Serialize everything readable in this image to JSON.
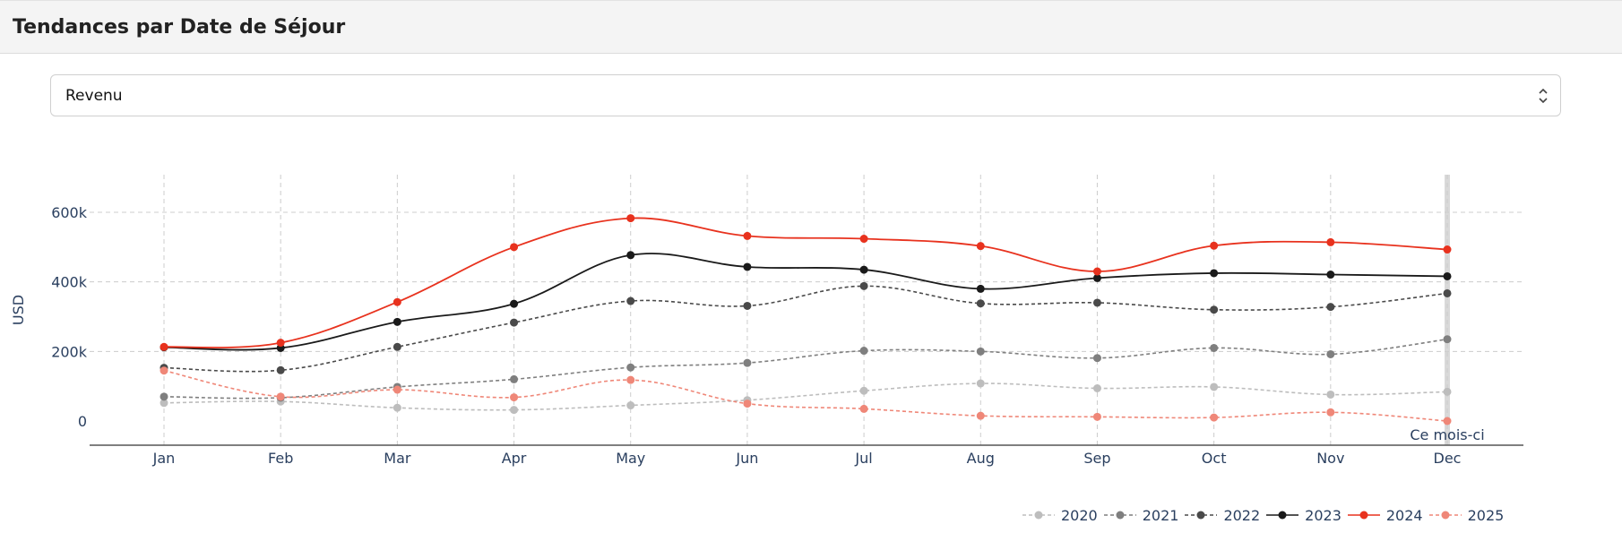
{
  "page": {
    "title": "Tendances par Date de Séjour"
  },
  "selector": {
    "value": "Revenu",
    "icon": "chevron-up-down-icon"
  },
  "chart_data": {
    "type": "line",
    "ylabel": "USD",
    "xlabel": "",
    "categories": [
      "Jan",
      "Feb",
      "Mar",
      "Apr",
      "May",
      "Jun",
      "Jul",
      "Aug",
      "Sep",
      "Oct",
      "Nov",
      "Dec"
    ],
    "ylim": [
      -60000,
      700000
    ],
    "yticks": [
      0,
      200000,
      400000,
      600000
    ],
    "ytick_labels": [
      "0",
      "200k",
      "400k",
      "600k"
    ],
    "grid": true,
    "legend_position": "bottom-right",
    "annotation": {
      "text": "Ce mois-ci",
      "category": "Dec"
    },
    "series": [
      {
        "name": "2020",
        "color": "#bdbdbd",
        "dash": true,
        "values": [
          52000,
          56000,
          38000,
          32000,
          45000,
          60000,
          87000,
          108000,
          94000,
          98000,
          76000,
          84000
        ]
      },
      {
        "name": "2021",
        "color": "#7f7f7f",
        "dash": true,
        "values": [
          70000,
          67000,
          98000,
          120000,
          154000,
          167000,
          202000,
          200000,
          181000,
          210000,
          192000,
          235000
        ]
      },
      {
        "name": "2022",
        "color": "#4a4a4a",
        "dash": true,
        "values": [
          153000,
          146000,
          213000,
          283000,
          345000,
          331000,
          388000,
          338000,
          340000,
          320000,
          328000,
          367000
        ]
      },
      {
        "name": "2023",
        "color": "#1a1a1a",
        "dash": false,
        "values": [
          212000,
          210000,
          285000,
          337000,
          477000,
          443000,
          435000,
          380000,
          411000,
          425000,
          421000,
          416000
        ]
      },
      {
        "name": "2024",
        "color": "#e8321e",
        "dash": false,
        "values": [
          213000,
          225000,
          342000,
          500000,
          583000,
          532000,
          524000,
          503000,
          430000,
          504000,
          514000,
          493000
        ]
      },
      {
        "name": "2025",
        "color": "#ef8778",
        "dash": true,
        "values": [
          145000,
          70000,
          90000,
          68000,
          118000,
          50000,
          35000,
          15000,
          12000,
          10000,
          25000,
          0
        ]
      }
    ]
  }
}
